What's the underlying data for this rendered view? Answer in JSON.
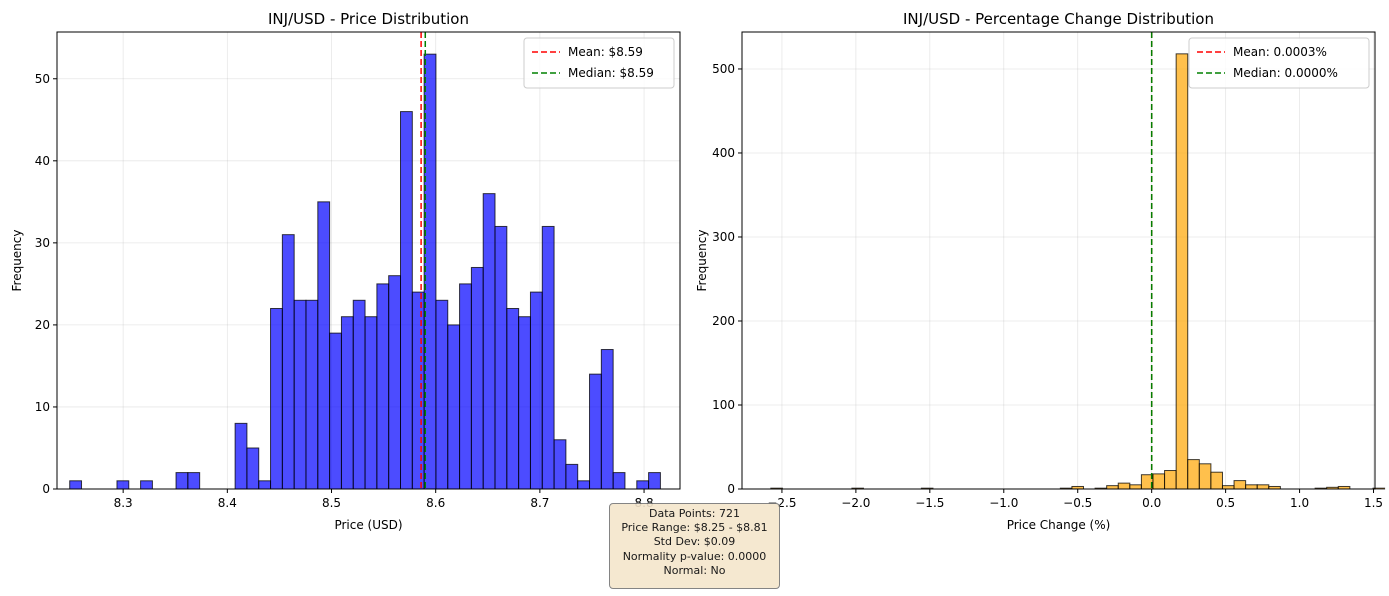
{
  "chart_data": [
    {
      "type": "bar",
      "title": "INJ/USD - Price Distribution",
      "xlabel": "Price (USD)",
      "ylabel": "Frequency",
      "xlim": [
        8.2365,
        8.8345
      ],
      "ylim": [
        0,
        55.7
      ],
      "xticks": [
        "8.3",
        "8.4",
        "8.5",
        "8.6",
        "8.7",
        "8.8"
      ],
      "xtick_values": [
        8.3,
        8.4,
        8.5,
        8.6,
        8.7,
        8.8
      ],
      "yticks": [
        "0",
        "10",
        "20",
        "30",
        "40",
        "50"
      ],
      "ytick_values": [
        0,
        10,
        20,
        30,
        40,
        50
      ],
      "bin_start": 8.2487,
      "bin_width": 0.01134,
      "values": [
        1,
        0,
        0,
        0,
        1,
        0,
        1,
        0,
        0,
        2,
        2,
        0,
        0,
        0,
        8,
        5,
        1,
        22,
        31,
        23,
        23,
        35,
        19,
        21,
        23,
        21,
        25,
        26,
        46,
        24,
        53,
        23,
        20,
        25,
        27,
        36,
        32,
        22,
        21,
        24,
        32,
        6,
        3,
        1,
        14,
        17,
        2,
        0,
        1,
        2
      ],
      "bar_color": "#0000ff",
      "bar_alpha": 0.7,
      "grid": true,
      "vlines": [
        {
          "name": "Mean: $8.59",
          "x": 8.586,
          "color": "#ff0000"
        },
        {
          "name": "Median: $8.59",
          "x": 8.59,
          "color": "#008000"
        }
      ],
      "legend": {
        "position": "top-right",
        "entries": [
          "Mean: $8.59",
          "Median: $8.59"
        ]
      }
    },
    {
      "type": "bar",
      "title": "INJ/USD - Percentage Change Distribution",
      "xlabel": "Price Change (%)",
      "ylabel": "Frequency",
      "xlim": [
        -2.77,
        1.51
      ],
      "ylim": [
        0,
        544
      ],
      "xticks": [
        "−2.5",
        "−2.0",
        "−1.5",
        "−1.0",
        "−0.5",
        "0.0",
        "0.5",
        "1.0",
        "1.5"
      ],
      "xtick_values": [
        -2.5,
        -2.0,
        -1.5,
        -1.0,
        -0.5,
        0.0,
        0.5,
        1.0,
        1.5
      ],
      "yticks": [
        "0",
        "100",
        "200",
        "300",
        "400",
        "500"
      ],
      "ytick_values": [
        0,
        100,
        200,
        300,
        400,
        500
      ],
      "bin_start": -2.575,
      "bin_width": 0.0783,
      "values": [
        1,
        0,
        0,
        0,
        0,
        0,
        0,
        1,
        0,
        0,
        0,
        0,
        0,
        1,
        0,
        0,
        0,
        0,
        0,
        0,
        0,
        0,
        0,
        0,
        0,
        1,
        3,
        0,
        1,
        4,
        7,
        5,
        17,
        18,
        22,
        518,
        35,
        30,
        20,
        4,
        10,
        5,
        5,
        3,
        0,
        0,
        0,
        1,
        2,
        3,
        0,
        0,
        1,
        0,
        1
      ],
      "bar_color": "#ffa500",
      "bar_alpha": 0.7,
      "grid": true,
      "vlines": [
        {
          "name": "Mean: 0.0003%",
          "x": 0.0003,
          "color": "#ff0000"
        },
        {
          "name": "Median: 0.0000%",
          "x": 0.0,
          "color": "#008000"
        }
      ],
      "legend": {
        "position": "top-right",
        "entries": [
          "Mean: 0.0003%",
          "Median: 0.0000%"
        ]
      }
    }
  ],
  "stats": {
    "data_points": "Data Points: 721",
    "price_range": "Price Range: $8.25 - $8.81",
    "std_dev": "Std Dev: $0.09",
    "normality": "Normality p-value: 0.0000",
    "normal": "Normal: No"
  }
}
